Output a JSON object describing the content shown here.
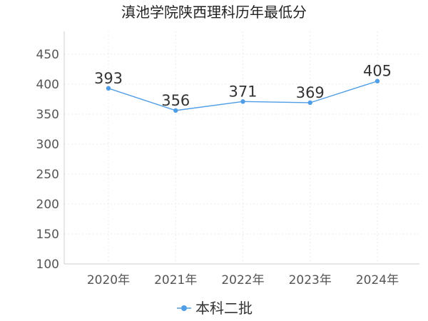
{
  "chart_data": {
    "type": "line",
    "title": "滇池学院陕西理科历年最低分",
    "categories": [
      "2020年",
      "2021年",
      "2022年",
      "2023年",
      "2024年"
    ],
    "series": [
      {
        "name": "本科二批",
        "values": [
          393,
          356,
          371,
          369,
          405
        ],
        "color": "#4e9de6"
      }
    ],
    "yticks": [
      100,
      150,
      200,
      250,
      300,
      350,
      400,
      450
    ],
    "ylim": [
      100,
      488
    ],
    "xlabel": "",
    "ylabel": "",
    "grid": true,
    "legend": "bottom-center"
  }
}
